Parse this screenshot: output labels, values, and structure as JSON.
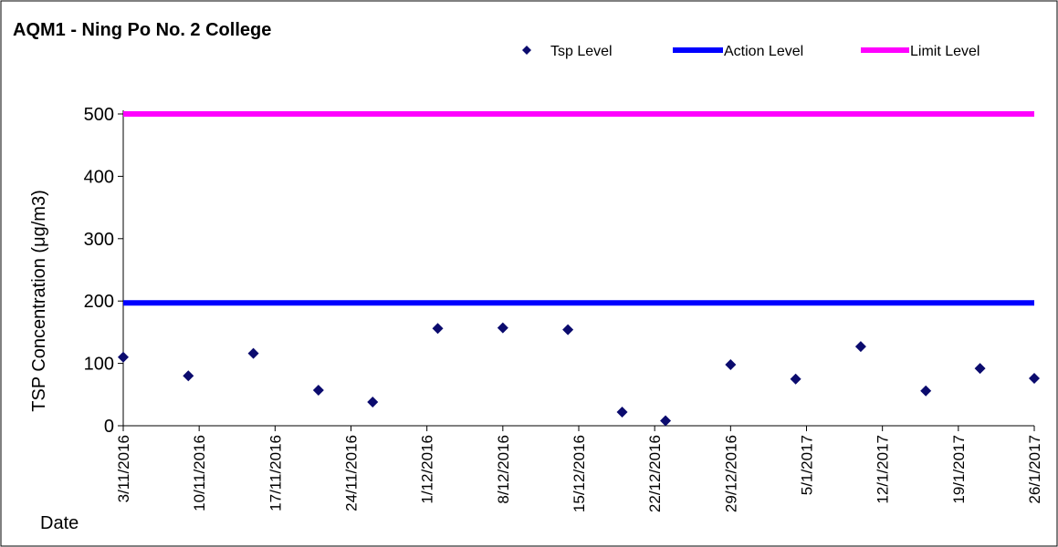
{
  "chart_data": {
    "type": "scatter",
    "title": "AQM1 - Ning Po No. 2 College",
    "xlabel": "Date",
    "ylabel": "TSP Concentration (μg/m3)",
    "ylim": [
      0,
      500
    ],
    "yticks": [
      0,
      100,
      200,
      300,
      400,
      500
    ],
    "xlim": [
      "3/11/2016",
      "26/1/2017"
    ],
    "xticks": [
      "3/11/2016",
      "10/11/2016",
      "17/11/2016",
      "24/11/2016",
      "1/12/2016",
      "8/12/2016",
      "15/12/2016",
      "22/12/2016",
      "29/12/2016",
      "5/1/2017",
      "12/1/2017",
      "19/1/2017",
      "26/1/2017"
    ],
    "grid": false,
    "legend_position": "top-right",
    "series": [
      {
        "name": "Tsp Level",
        "marker": "diamond",
        "color": "#0B0B6E",
        "points": [
          {
            "x": "3/11/2016",
            "y": 110
          },
          {
            "x": "9/11/2016",
            "y": 80
          },
          {
            "x": "15/11/2016",
            "y": 116
          },
          {
            "x": "21/11/2016",
            "y": 57
          },
          {
            "x": "26/11/2016",
            "y": 38
          },
          {
            "x": "2/12/2016",
            "y": 156
          },
          {
            "x": "8/12/2016",
            "y": 157
          },
          {
            "x": "14/12/2016",
            "y": 154
          },
          {
            "x": "19/12/2016",
            "y": 22
          },
          {
            "x": "23/12/2016",
            "y": 8
          },
          {
            "x": "29/12/2016",
            "y": 98
          },
          {
            "x": "4/1/2017",
            "y": 75
          },
          {
            "x": "10/1/2017",
            "y": 127
          },
          {
            "x": "16/1/2017",
            "y": 56
          },
          {
            "x": "21/1/2017",
            "y": 92
          },
          {
            "x": "26/1/2017",
            "y": 76
          }
        ]
      },
      {
        "name": "Action Level",
        "type": "line",
        "color": "#0000FF",
        "points": [
          {
            "x": "3/11/2016",
            "y": 197
          },
          {
            "x": "26/1/2017",
            "y": 197
          }
        ]
      },
      {
        "name": "Limit Level",
        "type": "line",
        "color": "#FF00FF",
        "points": [
          {
            "x": "3/11/2016",
            "y": 500
          },
          {
            "x": "26/1/2017",
            "y": 500
          }
        ]
      }
    ]
  }
}
